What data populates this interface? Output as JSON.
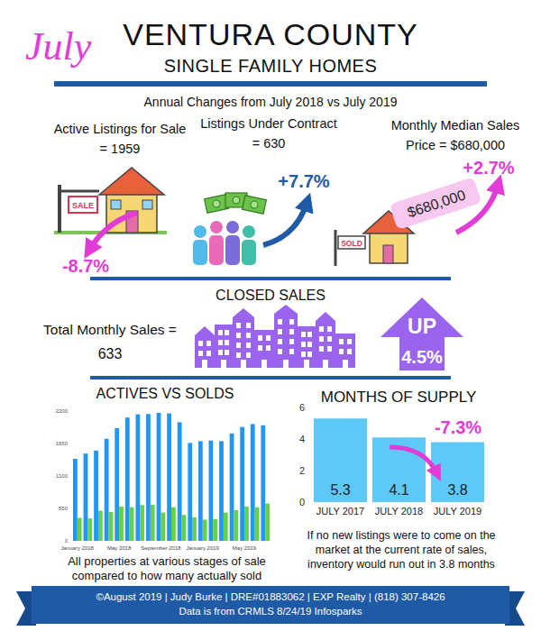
{
  "header": {
    "month": "July",
    "title": "VENTURA COUNTY",
    "subtitle": "SINGLE FAMILY HOMES",
    "period": "Annual Changes from July 2018 vs July 2019"
  },
  "annual_changes": [
    {
      "lines": [
        "Active Listings for Sale",
        "= 1959"
      ],
      "change": "-8.7%",
      "sign": "SALE"
    },
    {
      "lines": [
        "Listings Under Contract",
        "= 630"
      ],
      "change": "+7.7%"
    },
    {
      "lines": [
        "Monthly Median Sales",
        "Price = $680,000"
      ],
      "change": "+2.7%",
      "tag": "$680,000",
      "sign": "SOLD"
    }
  ],
  "closed_sales": {
    "title": "CLOSED SALES",
    "lines": [
      "Total Monthly Sales =",
      "633"
    ],
    "arrow_lines": [
      "UP",
      "4.5%"
    ]
  },
  "chart_data": [
    {
      "type": "bar",
      "title": "ACTIVES VS SOLDS",
      "categories": [
        "January 2018",
        null,
        null,
        null,
        "May 2018",
        null,
        null,
        null,
        "September 2018",
        null,
        null,
        null,
        "January 2019",
        null,
        null,
        null,
        "May 2019",
        null,
        null
      ],
      "series": [
        {
          "color": "#2196f3",
          "values": [
            1390,
            1480,
            1530,
            1730,
            1910,
            2090,
            2145,
            2150,
            2170,
            2160,
            2010,
            1660,
            1690,
            1700,
            1690,
            1820,
            1930,
            1980,
            1959
          ]
        },
        {
          "color": "#66d04a",
          "values": [
            390,
            380,
            510,
            490,
            580,
            570,
            606,
            610,
            480,
            570,
            440,
            400,
            360,
            370,
            480,
            520,
            580,
            570,
            633
          ]
        }
      ],
      "ylim": [
        0,
        2200
      ],
      "yticks": [
        0,
        550,
        1100,
        1650,
        2200
      ],
      "grid": false
    },
    {
      "type": "bar",
      "title": "MONTHS OF SUPPLY",
      "categories": [
        "JULY 2017",
        "JULY 2018",
        "JULY 2019"
      ],
      "values": [
        5.3,
        4.1,
        3.8
      ],
      "color": "#5ec8f7",
      "ylim": [
        0,
        6
      ],
      "yticks": [
        0,
        2,
        4,
        6
      ],
      "grid": false,
      "data_labels": true,
      "annotations": [
        "-7.3%"
      ]
    }
  ],
  "captions": [
    [
      "All properties at various stages of sale",
      "compared to how many actually sold"
    ],
    [
      "If no new listings were to come on the",
      "market at the current rate of sales,",
      "inventory would run out in 3.8 months"
    ]
  ],
  "footer": [
    "©August 2019 | Judy Burke | DRE#01883062 | EXP Realty | (818) 307-8426",
    "Data is from CRMLS 8/24/19 Infosparks"
  ]
}
